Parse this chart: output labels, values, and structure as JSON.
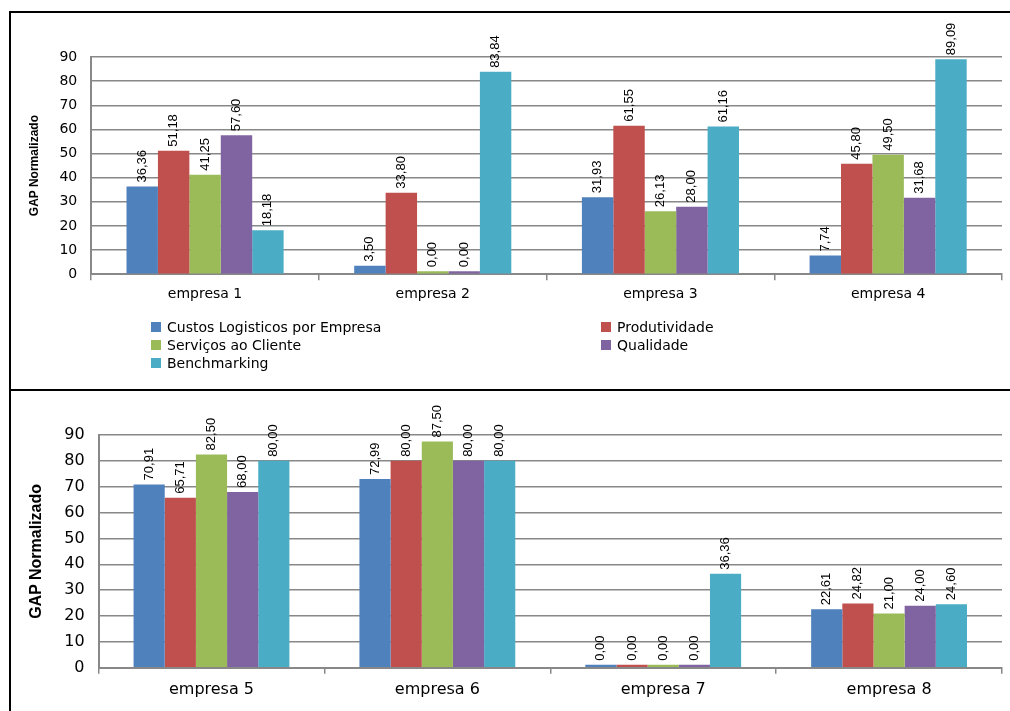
{
  "chart_data": [
    {
      "type": "bar",
      "ylabel": "GAP Normalizado",
      "categories": [
        "empresa 1",
        "empresa 2",
        "empresa 3",
        "empresa 4"
      ],
      "series": [
        {
          "name": "Custos Logisticos por Empresa",
          "color": "#4f81bd",
          "values": [
            36.36,
            3.5,
            31.93,
            7.74
          ],
          "value_labels": [
            "36,36",
            "3,50",
            "31,93",
            "7,74"
          ]
        },
        {
          "name": "Produtividade",
          "color": "#c0504d",
          "values": [
            51.18,
            33.8,
            61.55,
            45.8
          ],
          "value_labels": [
            "51,18",
            "33,80",
            "61,55",
            "45,80"
          ]
        },
        {
          "name": "Serviços ao Cliente",
          "color": "#9bbb59",
          "values": [
            41.25,
            0.0,
            26.13,
            49.5
          ],
          "value_labels": [
            "41,25",
            "0,00",
            "26,13",
            "49,50"
          ]
        },
        {
          "name": "Qualidade",
          "color": "#8064a2",
          "values": [
            57.6,
            0.0,
            28.0,
            31.68
          ],
          "value_labels": [
            "57,60",
            "0,00",
            "28,00",
            "31,68"
          ]
        },
        {
          "name": "Benchmarking",
          "color": "#4bacc6",
          "values": [
            18.18,
            83.84,
            61.16,
            89.09
          ],
          "value_labels": [
            "18,18",
            "83,84",
            "61,16",
            "89,09"
          ]
        }
      ],
      "ylim": [
        0,
        90
      ],
      "yticks": [
        0,
        10,
        20,
        30,
        40,
        50,
        60,
        70,
        80,
        90
      ],
      "grid": "y",
      "legend": "bottom"
    },
    {
      "type": "bar",
      "ylabel": "GAP Normalizado",
      "categories": [
        "empresa 5",
        "empresa 6",
        "empresa 7",
        "empresa 8"
      ],
      "series": [
        {
          "color": "#4f81bd",
          "values": [
            70.91,
            72.99,
            0.0,
            22.61
          ],
          "value_labels": [
            "70,91",
            "72,99",
            "0,00",
            "22,61"
          ]
        },
        {
          "color": "#c0504d",
          "values": [
            65.71,
            80.0,
            0.0,
            24.82
          ],
          "value_labels": [
            "65,71",
            "80,00",
            "0,00",
            "24,82"
          ]
        },
        {
          "color": "#9bbb59",
          "values": [
            82.5,
            87.5,
            0.0,
            21.0
          ],
          "value_labels": [
            "82,50",
            "87,50",
            "0,00",
            "21,00"
          ]
        },
        {
          "color": "#8064a2",
          "values": [
            68.0,
            80.0,
            0.0,
            24.0
          ],
          "value_labels": [
            "68,00",
            "80,00",
            "0,00",
            "24,00"
          ]
        },
        {
          "color": "#4bacc6",
          "values": [
            80.0,
            80.0,
            36.36,
            24.6
          ],
          "value_labels": [
            "80,00",
            "80,00",
            "36,36",
            "24,60"
          ]
        }
      ],
      "ylim": [
        0,
        90
      ],
      "yticks": [
        0,
        10,
        20,
        30,
        40,
        50,
        60,
        70,
        80,
        90
      ],
      "grid": "y",
      "legend": false
    }
  ]
}
